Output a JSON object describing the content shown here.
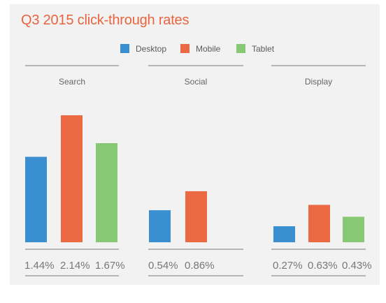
{
  "chart_data": {
    "type": "bar",
    "title": "Q3 2015 click-through rates",
    "unit": "%",
    "categories": [
      "Search",
      "Social",
      "Display"
    ],
    "series": [
      {
        "name": "Desktop",
        "color": "#3a8fd0",
        "values": [
          1.44,
          0.54,
          0.27
        ],
        "labels": [
          "1.44%",
          "0.54%",
          "0.27%"
        ]
      },
      {
        "name": "Mobile",
        "color": "#ec6a43",
        "values": [
          2.14,
          0.86,
          0.63
        ],
        "labels": [
          "2.14%",
          "0.86%",
          "0.63%"
        ]
      },
      {
        "name": "Tablet",
        "color": "#86c873",
        "values": [
          1.67,
          null,
          0.43
        ],
        "labels": [
          "1.67%",
          "",
          "0.43%"
        ]
      }
    ],
    "legend_position": "top-center",
    "grid": false
  }
}
